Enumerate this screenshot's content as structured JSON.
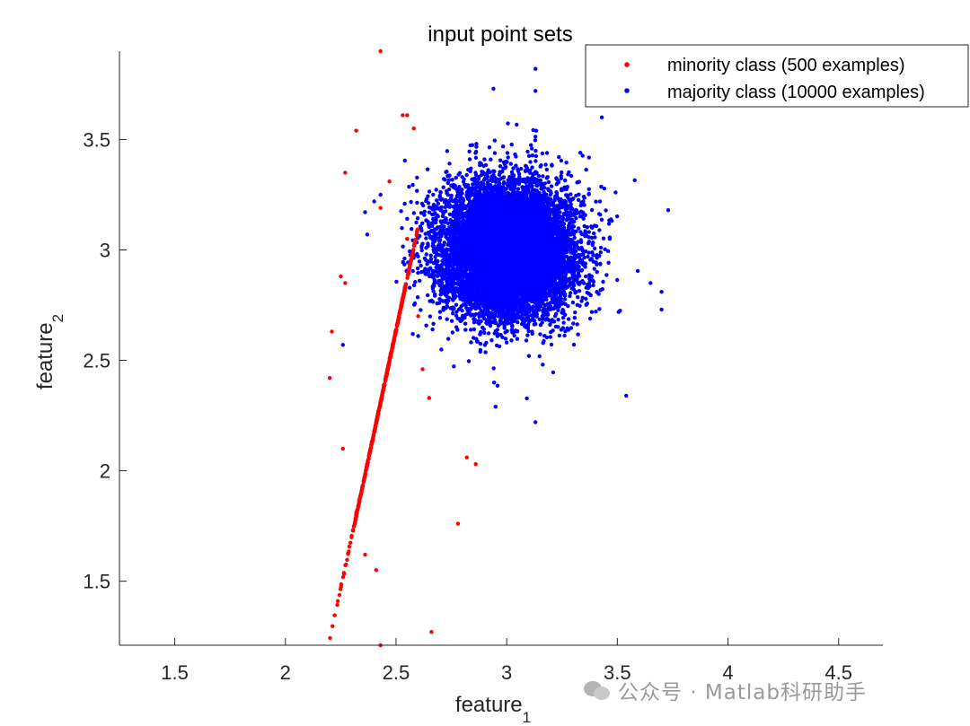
{
  "chart_data": {
    "type": "scatter",
    "title": "input point sets",
    "xlabel": "feature",
    "xlabel_sub": "1",
    "ylabel": "feature",
    "ylabel_sub": "2",
    "xlim": [
      1.25,
      4.7
    ],
    "ylim": [
      1.21,
      3.9
    ],
    "x_ticks": [
      1.5,
      2,
      2.5,
      3,
      3.5,
      4,
      4.5
    ],
    "x_tick_labels": [
      "1.5",
      "2",
      "2.5",
      "3",
      "3.5",
      "4",
      "4.5"
    ],
    "y_ticks": [
      1.5,
      2,
      2.5,
      3,
      3.5
    ],
    "y_tick_labels": [
      "1.5",
      "2",
      "2.5",
      "3",
      "3.5"
    ],
    "grid": false,
    "legend_position": "top-right",
    "series": [
      {
        "name": "minority class (500 examples)",
        "color": "#ff0000",
        "count": 500,
        "distribution": "correlated gaussian, mean about (2.45, 2.45), points lying left of / below the majority cluster",
        "points": [
          [
            2.43,
            3.9
          ],
          [
            2.32,
            3.54
          ],
          [
            2.27,
            3.35
          ],
          [
            2.53,
            3.61
          ],
          [
            2.55,
            3.61
          ],
          [
            2.58,
            3.55
          ],
          [
            2.47,
            3.31
          ],
          [
            2.43,
            3.19
          ],
          [
            2.25,
            2.88
          ],
          [
            2.27,
            2.85
          ],
          [
            2.21,
            2.63
          ],
          [
            2.2,
            2.42
          ],
          [
            2.26,
            2.1
          ],
          [
            2.32,
            1.81
          ],
          [
            2.36,
            1.62
          ],
          [
            2.41,
            1.55
          ],
          [
            2.43,
            1.21
          ],
          [
            2.66,
            1.27
          ],
          [
            2.78,
            1.76
          ],
          [
            2.82,
            2.06
          ],
          [
            2.86,
            2.03
          ],
          [
            2.65,
            2.33
          ],
          [
            2.62,
            2.46
          ],
          [
            2.6,
            2.7
          ],
          [
            2.55,
            3.05
          ]
        ]
      },
      {
        "name": "majority class (10000 examples)",
        "color": "#0000ff",
        "count": 10000,
        "distribution": "isotropic gaussian, mean about (3.0, 3.0), std about 0.15",
        "points": [
          [
            3.13,
            3.82
          ],
          [
            2.94,
            3.73
          ],
          [
            3.13,
            3.72
          ],
          [
            3.43,
            3.6
          ],
          [
            2.26,
            2.57
          ],
          [
            2.95,
            2.29
          ],
          [
            3.13,
            2.22
          ],
          [
            3.54,
            2.34
          ],
          [
            3.7,
            2.81
          ],
          [
            3.73,
            3.18
          ],
          [
            3.7,
            2.73
          ],
          [
            3.65,
            2.85
          ],
          [
            2.37,
            3.07
          ],
          [
            2.43,
            3.25
          ]
        ]
      }
    ]
  },
  "watermark": {
    "text": "公众号 · Matlab科研助手"
  }
}
